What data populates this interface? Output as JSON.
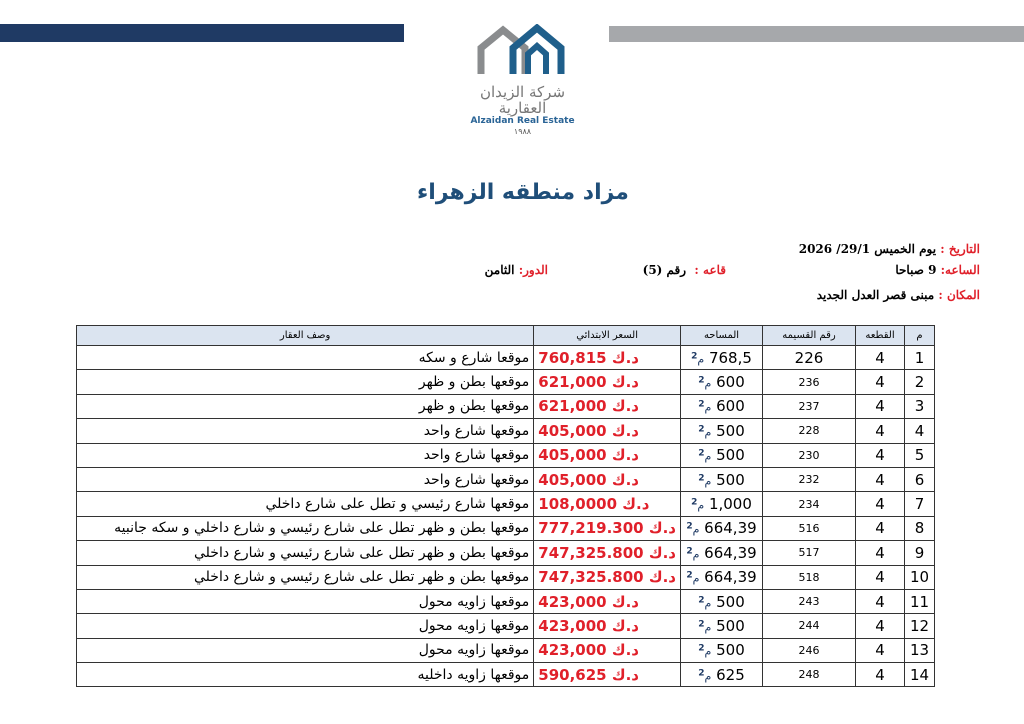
{
  "logo": {
    "arabic": "شركة الزيدان العقارية",
    "english": "Alzaidan Real Estate",
    "year": "١٩٨٨",
    "colors": {
      "gray": "#8a8c8e",
      "blue": "#1f5f8b"
    }
  },
  "title": "مزاد منطقه الزهراء",
  "info": {
    "date_label": "التاريخ :",
    "date_value": "يوم الخميس 29/1/ 2026",
    "time_label": "الساعه:",
    "time_value": "9 صباحا",
    "hall_label": "قاعه :",
    "hall_value": "رقم (5)",
    "floor_label": "الدور:",
    "floor_value": "الثامن",
    "place_label": "المكان :",
    "place_value": "مبنى قصر العدل الجديد"
  },
  "table": {
    "headers": [
      "م",
      "القطعه",
      "رقم القسيمه",
      "المساحه",
      "السعر الابتدائي",
      "وصف العقار"
    ],
    "area_unit": "م2",
    "currency": "د.ك",
    "rows": [
      {
        "no": "1",
        "block": "4",
        "plot": "226",
        "area": "768,5",
        "price": "760,815",
        "desc": "موقعا شارع و سكه"
      },
      {
        "no": "2",
        "block": "4",
        "plot": "236",
        "area": "600",
        "price": "621,000",
        "desc": "موقعها بطن و ظهر"
      },
      {
        "no": "3",
        "block": "4",
        "plot": "237",
        "area": "600",
        "price": "621,000",
        "desc": "موقعها بطن و ظهر"
      },
      {
        "no": "4",
        "block": "4",
        "plot": "228",
        "area": "500",
        "price": "405,000",
        "desc": "موقعها شارع واحد"
      },
      {
        "no": "5",
        "block": "4",
        "plot": "230",
        "area": "500",
        "price": "405,000",
        "desc": "موقعها شارع واحد"
      },
      {
        "no": "6",
        "block": "4",
        "plot": "232",
        "area": "500",
        "price": "405,000",
        "desc": "موقعها شارع واحد"
      },
      {
        "no": "7",
        "block": "4",
        "plot": "234",
        "area": "1,000",
        "price": "108,0000",
        "desc": "موقعها شارع رئيسي و تطل على شارع داخلي"
      },
      {
        "no": "8",
        "block": "4",
        "plot": "516",
        "area": "664,39",
        "price": "777,219.300",
        "desc": "موقعها بطن و ظهر تطل على شارع رئيسي و شارع داخلي و سكه جانبيه"
      },
      {
        "no": "9",
        "block": "4",
        "plot": "517",
        "area": "664,39",
        "price": "747,325.800",
        "desc": "موقعها بطن و ظهر تطل على شارع رئيسي و شارع داخلي"
      },
      {
        "no": "10",
        "block": "4",
        "plot": "518",
        "area": "664,39",
        "price": "747,325.800",
        "desc": "موقعها بطن و ظهر تطل على شارع رئيسي و شارع داخلي"
      },
      {
        "no": "11",
        "block": "4",
        "plot": "243",
        "area": "500",
        "price": "423,000",
        "desc": "موقعها زاويه محول"
      },
      {
        "no": "12",
        "block": "4",
        "plot": "244",
        "area": "500",
        "price": "423,000",
        "desc": "موقعها زاويه محول"
      },
      {
        "no": "13",
        "block": "4",
        "plot": "246",
        "area": "500",
        "price": "423,000",
        "desc": "موقعها زاويه محول"
      },
      {
        "no": "14",
        "block": "4",
        "plot": "248",
        "area": "625",
        "price": "590,625",
        "desc": "موقعها زاويه داخليه"
      }
    ]
  }
}
